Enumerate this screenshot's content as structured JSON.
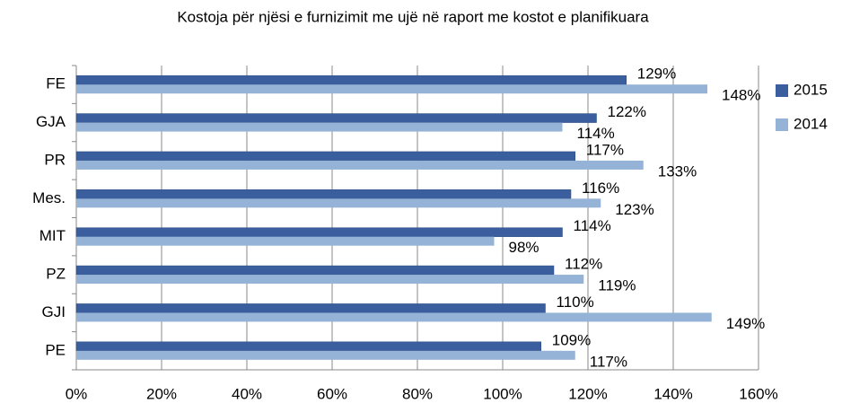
{
  "chart_data": {
    "type": "hbar",
    "title": "Kostoja për njësi e furnizimit me ujë në raport me kostot e planifikuara",
    "categories": [
      "FE",
      "GJA",
      "PR",
      "Mes.",
      "MIT",
      "PZ",
      "GJI",
      "PE"
    ],
    "series": [
      {
        "name": "2015",
        "color": "#3b5f9e",
        "values": [
          129,
          122,
          117,
          116,
          114,
          112,
          110,
          109
        ],
        "value_labels": [
          "129%",
          "122%",
          "117%",
          "116%",
          "114%",
          "112%",
          "110%",
          "109%"
        ]
      },
      {
        "name": "2014",
        "color": "#95b3d7",
        "values": [
          148,
          114,
          133,
          123,
          98,
          119,
          149,
          117
        ],
        "value_labels": [
          "148%",
          "114%",
          "133%",
          "123%",
          "98%",
          "119%",
          "149%",
          "117%"
        ]
      }
    ],
    "xlim": [
      0,
      160
    ],
    "xticks": [
      {
        "value": 0,
        "label": "0%"
      },
      {
        "value": 20,
        "label": "20%"
      },
      {
        "value": 40,
        "label": "40%"
      },
      {
        "value": 60,
        "label": "60%"
      },
      {
        "value": 80,
        "label": "80%"
      },
      {
        "value": 100,
        "label": "100%"
      },
      {
        "value": 120,
        "label": "120%"
      },
      {
        "value": 140,
        "label": "140%"
      },
      {
        "value": 160,
        "label": "160%"
      }
    ],
    "grid": true,
    "legend": "right"
  }
}
